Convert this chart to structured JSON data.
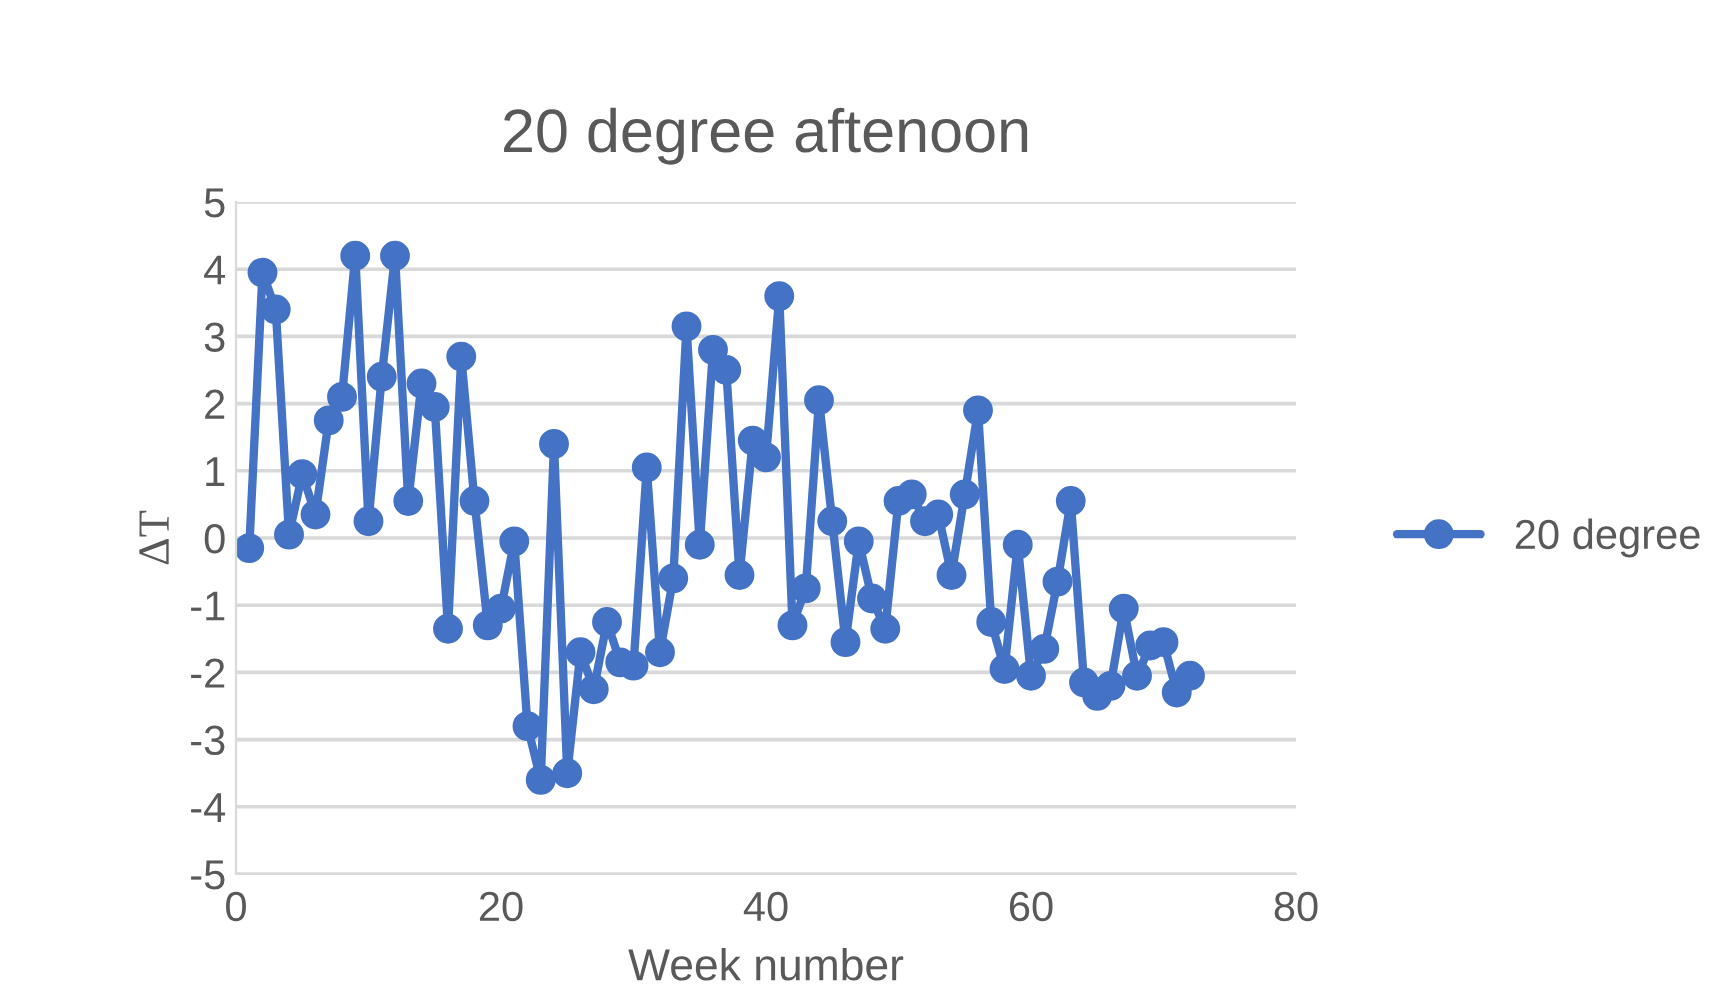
{
  "chart_data": {
    "type": "line",
    "title": "20 degree aftenoon",
    "xlabel": "Week number",
    "ylabel": "ΔT",
    "x": [
      1,
      2,
      3,
      4,
      5,
      6,
      7,
      8,
      9,
      10,
      11,
      12,
      13,
      14,
      15,
      16,
      17,
      18,
      19,
      20,
      21,
      22,
      23,
      24,
      25,
      26,
      27,
      28,
      29,
      30,
      31,
      32,
      33,
      34,
      35,
      36,
      37,
      38,
      39,
      40,
      41,
      42,
      43,
      44,
      45,
      46,
      47,
      48,
      49,
      50,
      51,
      52,
      53,
      54,
      55,
      56,
      57,
      58,
      59,
      60,
      61,
      62,
      63,
      64,
      65,
      66,
      67,
      68,
      69,
      70,
      71,
      72
    ],
    "series": [
      {
        "name": "20 degree",
        "color": "#4472c4",
        "values": [
          -0.15,
          3.95,
          3.4,
          0.05,
          0.95,
          0.35,
          1.75,
          2.1,
          4.2,
          0.25,
          2.4,
          4.2,
          0.55,
          2.3,
          1.95,
          -1.35,
          2.7,
          0.55,
          -1.3,
          -1.05,
          -0.05,
          -2.8,
          -3.6,
          1.4,
          -3.5,
          -1.7,
          -2.25,
          -1.25,
          -1.85,
          -1.9,
          1.05,
          -1.7,
          -0.6,
          3.15,
          -0.1,
          2.8,
          2.5,
          -0.55,
          1.45,
          1.2,
          3.6,
          -1.3,
          -0.75,
          2.05,
          0.25,
          -1.55,
          -0.05,
          -0.9,
          -1.35,
          0.55,
          0.65,
          0.25,
          0.35,
          -0.55,
          0.65,
          1.9,
          -1.25,
          -1.95,
          -0.1,
          -2.05,
          -1.65,
          -0.65,
          0.55,
          -2.15,
          -2.35,
          -2.2,
          -1.05,
          -2.05,
          -1.6,
          -1.55,
          -2.3,
          -2.05
        ]
      }
    ],
    "xlim": [
      0,
      80
    ],
    "xticks": [
      0,
      20,
      40,
      60,
      80
    ],
    "ylim": [
      -5,
      5
    ],
    "yticks": [
      -5,
      -4,
      -3,
      -2,
      -1,
      0,
      1,
      2,
      3,
      4,
      5
    ],
    "grid": "y",
    "legend": "right",
    "marker": "circle",
    "line_style": "solid"
  }
}
